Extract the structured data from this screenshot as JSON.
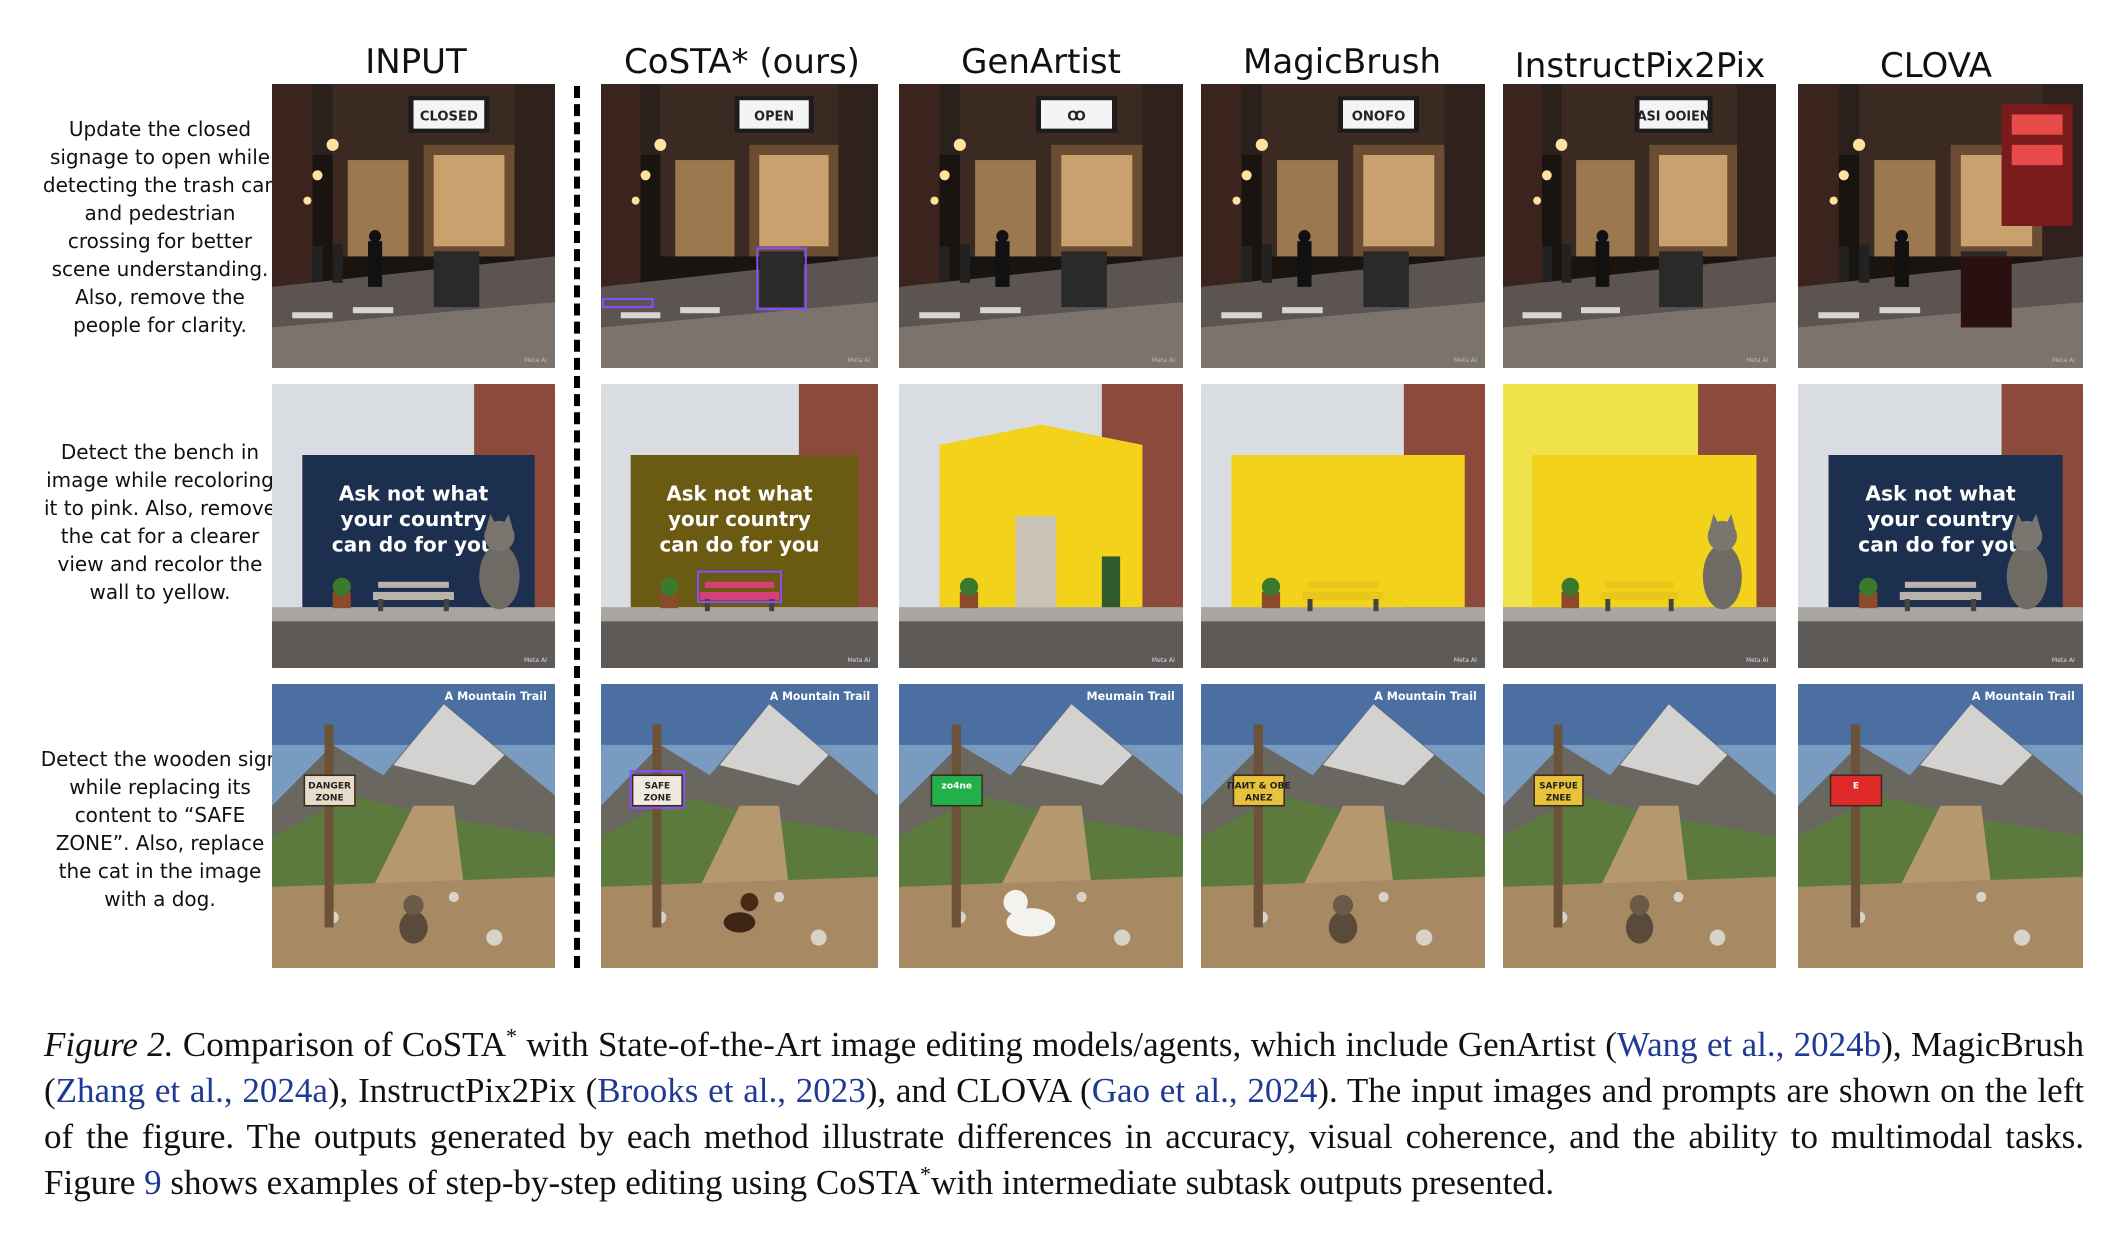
{
  "columns": [
    "INPUT",
    "CoSTA* (ours)",
    "GenArtist",
    "MagicBrush",
    "InstructPix2Pix",
    "CLOVA"
  ],
  "prompts": [
    "Update the closed signage to open while detecting the trash can and pedestrian crossing for better scene understanding. Also, remove the people for clarity.",
    "Detect the bench in image while recoloring it to pink. Also, remove the cat for a clearer view and recolor the wall to yellow.",
    "Detect the wooden sign while replacing its content to “SAFE ZONE”. Also, replace the cat in the image with a dog."
  ],
  "row1_signs": [
    "CLOSED",
    "OPEN",
    "Ꝏ",
    "ONOFO",
    "ASI OOIEN",
    ""
  ],
  "row2_wall_text": [
    "Ask not what",
    "your country",
    "can do for you"
  ],
  "row3_trail_label": [
    "A Mountain Trail",
    "A Mountain Trail",
    "Meumain Trail",
    "A Mountain Trail",
    "",
    "A Mountain Trail"
  ],
  "row3_signs": [
    [
      "DANGER",
      "ZONE"
    ],
    [
      "SAFE",
      "ZONE"
    ],
    [
      "zo4ne",
      ""
    ],
    [
      "ПАИТ & ОВЕ",
      "ANEZ"
    ],
    [
      "SAFPUE",
      "ZNEE"
    ],
    [
      "E",
      ""
    ]
  ],
  "watermark": "Meta AI",
  "colors": {
    "night_wall": "#3a2a22",
    "blue_wall": "#1d2f4f",
    "olive_wall": "#6b5a12",
    "yellow_wall": "#f2d21a",
    "pink_bench": "#d6407a",
    "sky": "#7a9bc0",
    "bbox": "#8a4dff"
  },
  "caption": {
    "figure_label": "Figure 2.",
    "part1": " Comparison of CoSTA",
    "sup1": "*",
    "part2": " with State-of-the-Art image editing models/agents, which include GenArtist (",
    "cite1": "Wang et al., 2024b",
    "part3": "), MagicBrush (",
    "cite2": "Zhang et al., 2024a",
    "part4": "), InstructPix2Pix (",
    "cite3": "Brooks et al., 2023",
    "part5": "), and CLOVA (",
    "cite4": "Gao et al., 2024",
    "part6": "). The input images and prompts are shown on the left of the figure. The outputs generated by each method illustrate differences in accuracy, visual coherence, and the ability to multimodal tasks. Figure ",
    "cite5": "9",
    "part7": " shows examples of step-by-step editing using CoSTA",
    "sup2": "*",
    "part8": "with intermediate subtask outputs presented."
  }
}
